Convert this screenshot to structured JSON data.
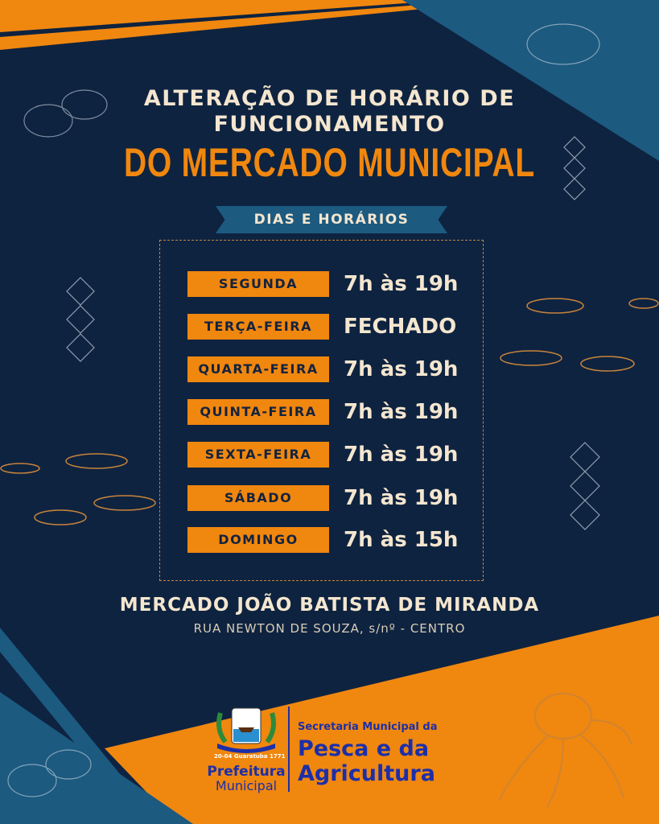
{
  "header": {
    "line1": "ALTERAÇÃO DE HORÁRIO DE",
    "line2": "FUNCIONAMENTO",
    "line3": "DO MERCADO MUNICIPAL"
  },
  "banner": "DIAS E HORÁRIOS",
  "schedule": [
    {
      "day": "SEGUNDA",
      "hours": "7h às 19h"
    },
    {
      "day": "TERÇA-FEIRA",
      "hours": "FECHADO"
    },
    {
      "day": "QUARTA-FEIRA",
      "hours": "7h às 19h"
    },
    {
      "day": "QUINTA-FEIRA",
      "hours": "7h às 19h"
    },
    {
      "day": "SEXTA-FEIRA",
      "hours": "7h às 19h"
    },
    {
      "day": "SÁBADO",
      "hours": "7h às 19h"
    },
    {
      "day": "DOMINGO",
      "hours": "7h às 15h"
    }
  ],
  "market": {
    "name": "MERCADO JOÃO BATISTA DE MIRANDA",
    "address": "RUA NEWTON DE SOUZA, s/nº - CENTRO"
  },
  "footer": {
    "crest_text": "20-04 Guaratuba 1771",
    "prefeitura": "Prefeitura",
    "municipal": "Municipal",
    "secretaria": "Secretaria Municipal da",
    "pesca": "Pesca e da",
    "agricultura": "Agricultura"
  },
  "colors": {
    "navy": "#0e2340",
    "orange": "#f0870f",
    "blue": "#1c5a80",
    "cream": "#f4e6cf"
  }
}
